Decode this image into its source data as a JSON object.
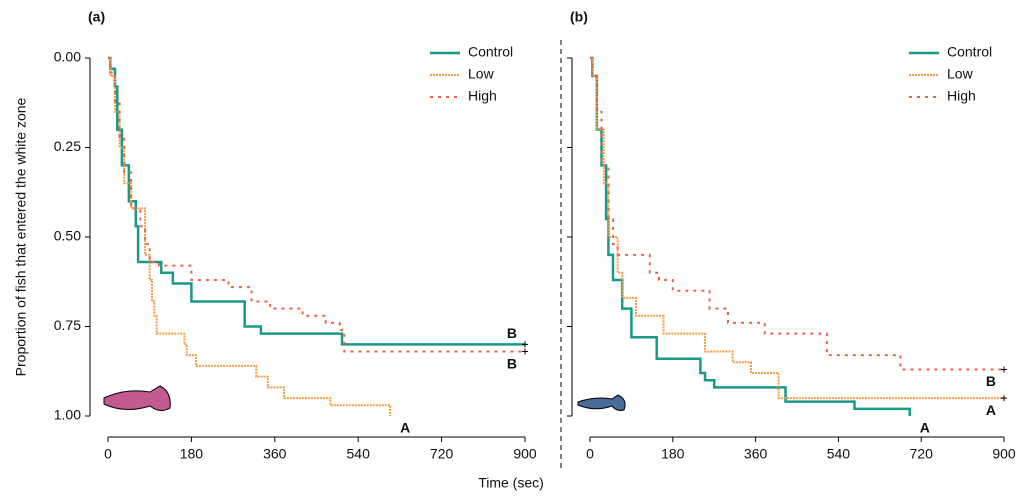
{
  "chart_data": [
    {
      "type": "step",
      "panel_label": "(a)",
      "ylabel": "Proportion of fish that entered the white zone",
      "xlabel": "Time (sec)",
      "xlim": [
        0,
        900
      ],
      "xticks": [
        0,
        180,
        360,
        540,
        720,
        900
      ],
      "ylim": [
        1,
        0
      ],
      "yticks": [
        {
          "value": 0,
          "label": "0.00"
        },
        {
          "value": 0.25,
          "label": "0.25"
        },
        {
          "value": 0.5,
          "label": "0.50"
        },
        {
          "value": 0.75,
          "label": "0.75"
        },
        {
          "value": 1,
          "label": "1.00"
        }
      ],
      "series": [
        {
          "name": "Control",
          "color": "#1a9988",
          "style": "solid",
          "end_label": "B",
          "x": [
            0,
            5,
            15,
            20,
            30,
            45,
            60,
            65,
            115,
            140,
            180,
            295,
            330,
            505,
            900
          ],
          "values": [
            0,
            0.03,
            0.08,
            0.2,
            0.3,
            0.4,
            0.47,
            0.57,
            0.6,
            0.63,
            0.68,
            0.75,
            0.77,
            0.8,
            0.8
          ]
        },
        {
          "name": "Low",
          "color": "#f0a044",
          "style": "dotted-line",
          "end_label": "A",
          "x": [
            0,
            5,
            15,
            25,
            35,
            50,
            80,
            90,
            95,
            100,
            105,
            165,
            170,
            190,
            320,
            345,
            380,
            480,
            609
          ],
          "values": [
            0,
            0.05,
            0.15,
            0.25,
            0.35,
            0.42,
            0.55,
            0.62,
            0.68,
            0.72,
            0.77,
            0.8,
            0.83,
            0.86,
            0.89,
            0.92,
            0.95,
            0.97,
            1
          ]
        },
        {
          "name": "High",
          "color": "#e8654a",
          "style": "dotted",
          "end_label": "B",
          "x": [
            0,
            5,
            15,
            25,
            35,
            50,
            70,
            80,
            90,
            110,
            180,
            260,
            310,
            350,
            420,
            470,
            500,
            510,
            900
          ],
          "values": [
            0,
            0.04,
            0.12,
            0.22,
            0.32,
            0.42,
            0.47,
            0.52,
            0.57,
            0.58,
            0.62,
            0.64,
            0.68,
            0.7,
            0.72,
            0.74,
            0.76,
            0.82,
            0.82
          ]
        }
      ]
    },
    {
      "type": "step",
      "panel_label": "(b)",
      "xlim": [
        0,
        900
      ],
      "xticks": [
        0,
        180,
        360,
        540,
        720,
        900
      ],
      "ylim": [
        1,
        0
      ],
      "yticks": [
        0,
        0.25,
        0.5,
        0.75,
        1
      ],
      "series": [
        {
          "name": "Control",
          "color": "#1a9988",
          "style": "solid",
          "end_label": "A",
          "x": [
            0,
            5,
            15,
            25,
            35,
            40,
            50,
            70,
            90,
            145,
            240,
            250,
            270,
            425,
            575,
            695
          ],
          "values": [
            0,
            0.05,
            0.2,
            0.3,
            0.45,
            0.55,
            0.62,
            0.7,
            0.78,
            0.84,
            0.88,
            0.9,
            0.92,
            0.96,
            0.98,
            1
          ]
        },
        {
          "name": "Low",
          "color": "#f0a044",
          "style": "dotted-line",
          "end_label": "A",
          "x": [
            0,
            5,
            15,
            30,
            40,
            60,
            70,
            100,
            160,
            250,
            310,
            350,
            410,
            900
          ],
          "values": [
            0,
            0.05,
            0.2,
            0.35,
            0.5,
            0.6,
            0.67,
            0.72,
            0.77,
            0.82,
            0.85,
            0.88,
            0.95,
            0.95
          ]
        },
        {
          "name": "High",
          "color": "#e8654a",
          "style": "dotted",
          "end_label": "B",
          "x": [
            0,
            5,
            15,
            25,
            40,
            50,
            60,
            130,
            150,
            180,
            260,
            300,
            380,
            515,
            675,
            900
          ],
          "values": [
            0,
            0.05,
            0.15,
            0.3,
            0.45,
            0.52,
            0.55,
            0.6,
            0.62,
            0.65,
            0.7,
            0.74,
            0.77,
            0.83,
            0.87,
            0.87
          ]
        }
      ]
    }
  ]
}
